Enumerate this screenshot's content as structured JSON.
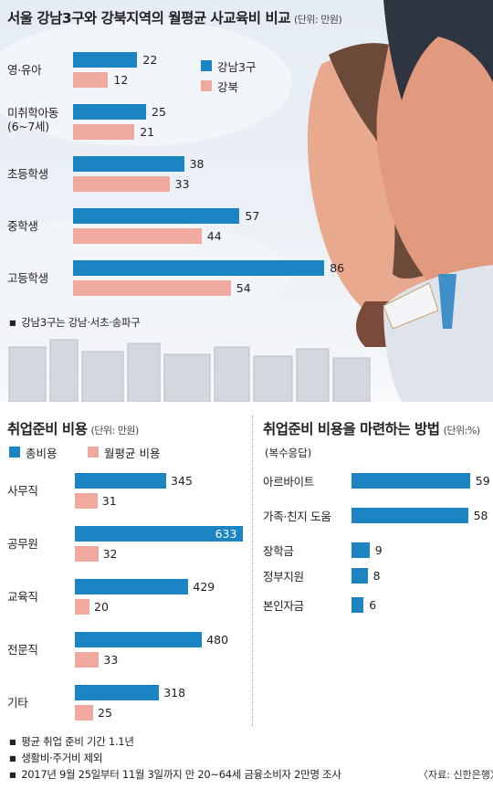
{
  "chart_data": [
    {
      "type": "bar",
      "title": "서울 강남3구와 강북지역의 월평균 사교육비 비교",
      "unit": "(단위: 만원)",
      "categories": [
        "영·유아",
        "미취학아동 (6~7세)",
        "초등학생",
        "중학생",
        "고등학생"
      ],
      "category_lines": [
        [
          "영·유아"
        ],
        [
          "미취학아동",
          "(6~7세)"
        ],
        [
          "초등학생"
        ],
        [
          "중학생"
        ],
        [
          "고등학생"
        ]
      ],
      "series": [
        {
          "name": "강남3구",
          "values": [
            22,
            25,
            38,
            57,
            86
          ],
          "color": "#1a85c2"
        },
        {
          "name": "강북",
          "values": [
            12,
            21,
            33,
            44,
            54
          ],
          "color": "#f0a99e"
        }
      ],
      "note": "강남3구는 강남·서초·송파구",
      "orientation": "horizontal",
      "legend_position": "top-right"
    },
    {
      "type": "bar",
      "title": "취업준비 비용",
      "unit": "(단위: 만원)",
      "categories": [
        "사무직",
        "공무원",
        "교육직",
        "전문직",
        "기타"
      ],
      "series": [
        {
          "name": "총비용",
          "values": [
            345,
            633,
            429,
            480,
            318
          ],
          "color": "#1a85c2"
        },
        {
          "name": "월평균 비용",
          "values": [
            31,
            32,
            20,
            33,
            25
          ],
          "color": "#f0a99e"
        }
      ],
      "orientation": "horizontal",
      "legend_position": "top"
    },
    {
      "type": "bar",
      "title": "취업준비 비용을 마련하는 방법",
      "unit": "(단위:%)",
      "subtitle": "(복수응답)",
      "categories": [
        "아르바이트",
        "가족·친지 도움",
        "장학금",
        "정부지원",
        "본인자금"
      ],
      "series": [
        {
          "values": [
            59,
            58,
            9,
            8,
            6
          ],
          "color": "#1a85c2"
        }
      ],
      "orientation": "horizontal"
    }
  ],
  "notes": [
    "평균 취업 준비 기간 1.1년",
    "생활비·주거비 제외",
    "2017년 9월 25일부터 11월 3일까지 만 20~64세 금융소비자 2만명 조사"
  ],
  "source": "〈자료: 신한은행〉"
}
